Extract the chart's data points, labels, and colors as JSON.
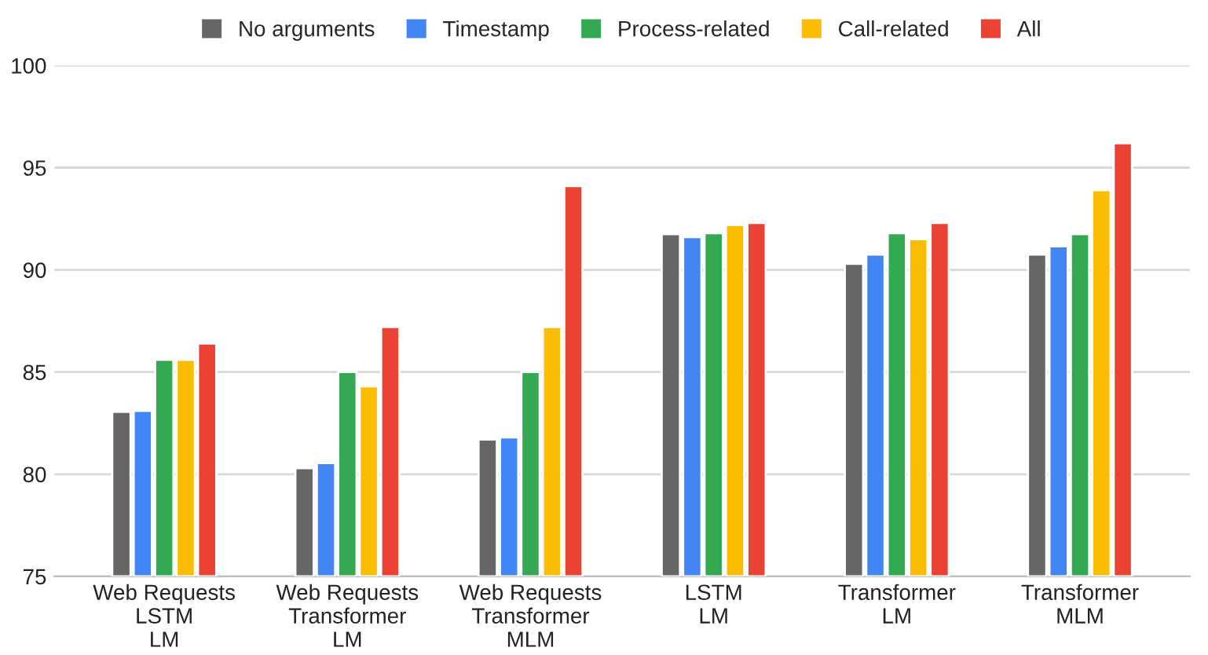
{
  "chart_data": {
    "type": "bar",
    "categories": [
      "Web Requests\nLSTM\nLM",
      "Web Requests\nTransformer\nLM",
      "Web Requests\nTransformer\nMLM",
      "LSTM\nLM",
      "Transformer\nLM",
      "Transformer\nMLM"
    ],
    "series": [
      {
        "name": "No arguments",
        "color": "#666666",
        "values": [
          83.05,
          80.3,
          81.7,
          91.75,
          90.3,
          90.75
        ]
      },
      {
        "name": "Timestamp",
        "color": "#4285f4",
        "values": [
          83.1,
          80.55,
          81.8,
          91.6,
          90.75,
          91.15
        ]
      },
      {
        "name": "Process-related",
        "color": "#34a853",
        "values": [
          85.6,
          85.0,
          85.0,
          91.8,
          91.8,
          91.75
        ]
      },
      {
        "name": "Call-related",
        "color": "#fbbc04",
        "values": [
          85.6,
          84.3,
          87.2,
          92.2,
          91.5,
          93.9
        ]
      },
      {
        "name": "All",
        "color": "#ea4335",
        "values": [
          86.4,
          87.2,
          94.1,
          92.3,
          92.3,
          96.2
        ]
      }
    ],
    "ylim": [
      75,
      100
    ],
    "yticks": [
      75,
      80,
      85,
      90,
      95,
      100
    ],
    "grid": "y",
    "legend": "top"
  }
}
